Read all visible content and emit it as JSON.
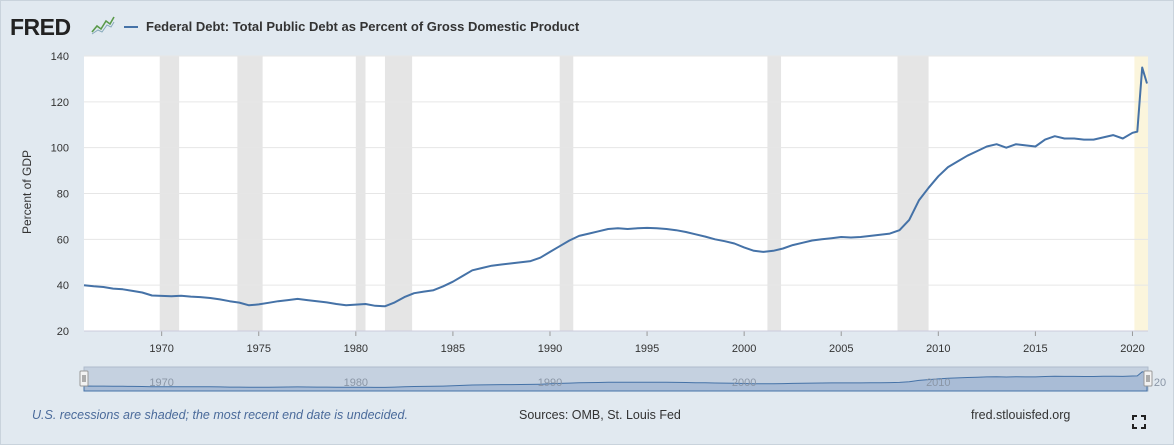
{
  "header": {
    "logo_text": "FRED",
    "series_title": "Federal Debt: Total Public Debt as Percent of Gross Domestic Product",
    "series_color": "#4572a7"
  },
  "footer": {
    "recession_note": "U.S. recessions are shaded; the most recent end date is undecided.",
    "sources": "Sources: OMB, St. Louis Fed",
    "site": "fred.stlouisfed.org"
  },
  "icons": {
    "fullscreen": "fullscreen-icon",
    "logo_graph": "graph-sparkline-icon"
  },
  "chart_data": {
    "type": "line",
    "title": "Federal Debt: Total Public Debt as Percent of Gross Domestic Product",
    "ylabel": "Percent of GDP",
    "xlabel": "",
    "xlim": [
      1966.0,
      2020.8
    ],
    "ylim": [
      20,
      140
    ],
    "yticks": [
      20,
      40,
      60,
      80,
      100,
      120,
      140
    ],
    "xticks": [
      1970,
      1975,
      1980,
      1985,
      1990,
      1995,
      2000,
      2005,
      2010,
      2015,
      2020
    ],
    "grid": true,
    "recession_color": "#e5e5e5",
    "current_recession_color": "#fbf5dc",
    "recessions": [
      [
        1969.9,
        1970.9
      ],
      [
        1973.9,
        1975.2
      ],
      [
        1980.0,
        1980.5
      ],
      [
        1981.5,
        1982.9
      ],
      [
        1990.5,
        1991.2
      ],
      [
        2001.2,
        2001.9
      ],
      [
        2007.9,
        2009.5
      ]
    ],
    "current_recession": [
      2020.1,
      2020.8
    ],
    "series": [
      {
        "name": "Federal Debt: Total Public Debt as Percent of Gross Domestic Product",
        "x": [
          1966.0,
          1966.5,
          1967.0,
          1967.5,
          1968.0,
          1968.5,
          1969.0,
          1969.5,
          1970.0,
          1970.5,
          1971.0,
          1971.5,
          1972.0,
          1972.5,
          1973.0,
          1973.5,
          1974.0,
          1974.5,
          1975.0,
          1975.5,
          1976.0,
          1976.5,
          1977.0,
          1977.5,
          1978.0,
          1978.5,
          1979.0,
          1979.5,
          1980.0,
          1980.5,
          1981.0,
          1981.5,
          1982.0,
          1982.5,
          1983.0,
          1983.5,
          1984.0,
          1984.5,
          1985.0,
          1985.5,
          1986.0,
          1986.5,
          1987.0,
          1987.5,
          1988.0,
          1988.5,
          1989.0,
          1989.5,
          1990.0,
          1990.5,
          1991.0,
          1991.5,
          1992.0,
          1992.5,
          1993.0,
          1993.5,
          1994.0,
          1994.5,
          1995.0,
          1995.5,
          1996.0,
          1996.5,
          1997.0,
          1997.5,
          1998.0,
          1998.5,
          1999.0,
          1999.5,
          2000.0,
          2000.5,
          2001.0,
          2001.5,
          2002.0,
          2002.5,
          2003.0,
          2003.5,
          2004.0,
          2004.5,
          2005.0,
          2005.5,
          2006.0,
          2006.5,
          2007.0,
          2007.5,
          2008.0,
          2008.5,
          2009.0,
          2009.5,
          2010.0,
          2010.5,
          2011.0,
          2011.5,
          2012.0,
          2012.5,
          2013.0,
          2013.5,
          2014.0,
          2014.5,
          2015.0,
          2015.5,
          2016.0,
          2016.5,
          2017.0,
          2017.5,
          2018.0,
          2018.5,
          2019.0,
          2019.5,
          2020.0,
          2020.25,
          2020.5,
          2020.75
        ],
        "y": [
          40,
          39.5,
          39.2,
          38.5,
          38.2,
          37.5,
          36.8,
          35.5,
          35.3,
          35.2,
          35.4,
          35.0,
          34.8,
          34.4,
          33.8,
          33.0,
          32.4,
          31.2,
          31.6,
          32.3,
          33.0,
          33.5,
          34.0,
          33.5,
          33.0,
          32.5,
          31.8,
          31.2,
          31.5,
          31.8,
          31.0,
          30.8,
          32.5,
          34.8,
          36.5,
          37.2,
          37.8,
          39.5,
          41.5,
          44.0,
          46.5,
          47.5,
          48.5,
          49.0,
          49.5,
          50.0,
          50.5,
          52.0,
          54.5,
          57.0,
          59.5,
          61.5,
          62.5,
          63.5,
          64.5,
          64.8,
          64.5,
          64.8,
          65.0,
          64.8,
          64.5,
          64.0,
          63.2,
          62.2,
          61.2,
          60.0,
          59.2,
          58.2,
          56.5,
          55.0,
          54.5,
          55.0,
          56.0,
          57.5,
          58.5,
          59.5,
          60.0,
          60.5,
          61.0,
          60.8,
          61.0,
          61.5,
          62.0,
          62.5,
          64.0,
          68.5,
          77.0,
          82.5,
          87.5,
          91.5,
          94.0,
          96.5,
          98.5,
          100.5,
          101.5,
          100.0,
          101.5,
          101.0,
          100.5,
          103.5,
          105.0,
          104.0,
          104.0,
          103.5,
          103.5,
          104.5,
          105.5,
          104.0,
          106.5,
          107.0,
          135.0,
          128.0
        ]
      }
    ]
  },
  "navigator": {
    "tick_labels": [
      "1970",
      "1980",
      "1990",
      "2000",
      "2010",
      "20"
    ]
  }
}
